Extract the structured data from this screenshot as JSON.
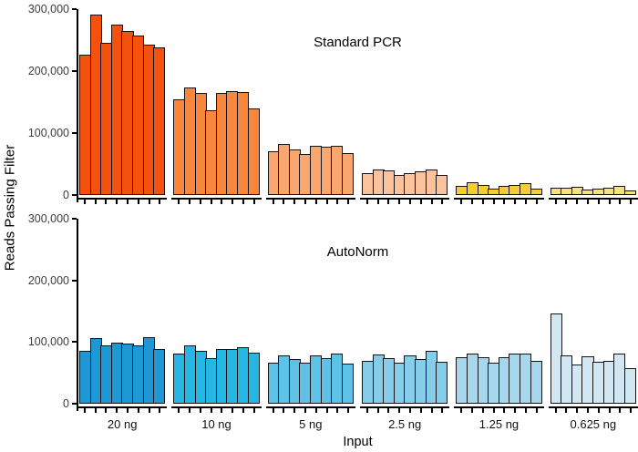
{
  "chart_data": {
    "type": "bar",
    "title": "",
    "ylabel": "Reads Passing Filter",
    "xlabel": "Input",
    "ylim": [
      0,
      300000
    ],
    "yticks": [
      0,
      100000,
      200000,
      300000
    ],
    "ytick_labels": [
      "0",
      "100,000",
      "200,000",
      "300,000"
    ],
    "categories": [
      "20 ng",
      "10 ng",
      "5 ng",
      "2.5 ng",
      "1.25 ng",
      "0.625 ng"
    ],
    "bars_per_group": 8,
    "legend": "none",
    "grid": "off",
    "panels": [
      {
        "label": "Standard PCR",
        "groups": [
          {
            "category": "20 ng",
            "color": "#F4510F",
            "values": [
              226000,
              291000,
              246000,
              275000,
              265000,
              257000,
              242000,
              238000
            ]
          },
          {
            "category": "10 ng",
            "color": "#F8873D",
            "values": [
              154000,
              173000,
              164000,
              137000,
              164000,
              168000,
              166000,
              140000
            ]
          },
          {
            "category": "5 ng",
            "color": "#F9A671",
            "values": [
              70000,
              82000,
              73000,
              66000,
              79000,
              78000,
              80000,
              68000
            ]
          },
          {
            "category": "2.5 ng",
            "color": "#FBC29E",
            "values": [
              35000,
              41000,
              39000,
              32000,
              36000,
              38000,
              41000,
              33000
            ]
          },
          {
            "category": "1.25 ng",
            "color": "#F5CE33",
            "values": [
              15000,
              20000,
              16000,
              11000,
              14000,
              16000,
              19000,
              10000
            ]
          },
          {
            "category": "0.625 ng",
            "color": "#F8E083",
            "values": [
              12000,
              12000,
              13000,
              9000,
              11000,
              12000,
              14000,
              8000
            ]
          }
        ]
      },
      {
        "label": "AutoNorm",
        "groups": [
          {
            "category": "20 ng",
            "color": "#1D98D5",
            "values": [
              86000,
              106000,
              95000,
              99000,
              97000,
              95000,
              108000,
              88000
            ]
          },
          {
            "category": "10 ng",
            "color": "#27B5E4",
            "values": [
              82000,
              94000,
              86000,
              74000,
              88000,
              89000,
              91000,
              83000
            ]
          },
          {
            "category": "5 ng",
            "color": "#5EC2E7",
            "values": [
              66000,
              78000,
              72000,
              67000,
              78000,
              74000,
              81000,
              65000
            ]
          },
          {
            "category": "2.5 ng",
            "color": "#86CDEA",
            "values": [
              69000,
              80000,
              74000,
              66000,
              79000,
              72000,
              85000,
              68000
            ]
          },
          {
            "category": "1.25 ng",
            "color": "#A6D7EC",
            "values": [
              75000,
              82000,
              76000,
              66000,
              76000,
              82000,
              81000,
              70000
            ]
          },
          {
            "category": "0.625 ng",
            "color": "#D2E7F1",
            "values": [
              146000,
              78000,
              64000,
              77000,
              68000,
              70000,
              81000,
              58000
            ]
          }
        ]
      }
    ]
  }
}
